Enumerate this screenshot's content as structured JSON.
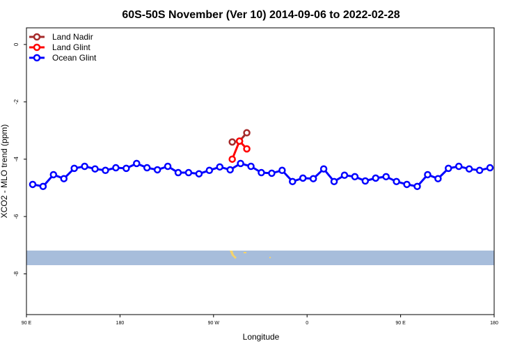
{
  "chart_data": {
    "type": "line",
    "title": "60S-50S November (Ver 10)   2014-09-06 to 2022-02-28",
    "x_label": "Longitude",
    "y_label": "XCO2 - MLO trend (ppm)",
    "xlim": [
      90,
      540
    ],
    "ylim": [
      -9.42,
      0.58
    ],
    "xticks": [
      {
        "value": 90,
        "label": "90 E"
      },
      180,
      {
        "value": 270,
        "label": "90 W"
      },
      {
        "value": 360,
        "label": "0"
      },
      {
        "value": 450,
        "label": "90 E"
      },
      {
        "value": 540,
        "label": "180"
      }
    ],
    "yticks": [
      0,
      -2,
      -4,
      -6,
      -8
    ],
    "legend": "top-left",
    "series": [
      {
        "name": "Land Nadir",
        "color": "#a52a2a",
        "x": [
          288,
          295,
          302
        ],
        "values": [
          -3.4,
          -3.37,
          -3.08
        ]
      },
      {
        "name": "Land Glint",
        "color": "#ff0000",
        "x": [
          288,
          295,
          302
        ],
        "values": [
          -4.0,
          -3.37,
          -3.64
        ]
      },
      {
        "name": "Ocean Glint",
        "color": "#0000ff",
        "x": [
          96,
          106,
          116,
          126,
          136,
          146,
          156,
          166,
          176,
          186,
          196,
          206,
          216,
          226,
          236,
          246,
          256,
          266,
          276,
          286,
          296,
          306,
          316,
          326,
          336,
          346,
          356,
          366,
          376,
          386,
          396,
          406,
          416,
          426,
          436,
          446,
          456,
          466,
          476,
          486,
          496,
          506,
          516,
          526,
          536
        ],
        "values": [
          -4.88,
          -4.95,
          -4.54,
          -4.68,
          -4.32,
          -4.25,
          -4.34,
          -4.39,
          -4.3,
          -4.32,
          -4.15,
          -4.3,
          -4.37,
          -4.25,
          -4.47,
          -4.47,
          -4.51,
          -4.39,
          -4.27,
          -4.37,
          -4.15,
          -4.25,
          -4.47,
          -4.49,
          -4.39,
          -4.78,
          -4.66,
          -4.68,
          -4.34,
          -4.78,
          -4.56,
          -4.61,
          -4.76,
          -4.66,
          -4.61,
          -4.78,
          -4.88,
          -4.95,
          -4.54,
          -4.68,
          -4.32,
          -4.25,
          -4.34,
          -4.39,
          -4.3
        ]
      }
    ]
  }
}
